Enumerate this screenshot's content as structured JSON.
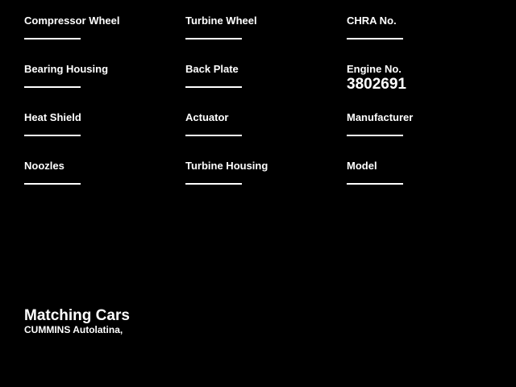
{
  "window": {
    "bg_color": "#000000",
    "text_color": "#ffffff"
  },
  "fields": {
    "col1": [
      {
        "label": "Compressor Wheel",
        "value": ""
      },
      {
        "label": "Bearing Housing",
        "value": ""
      },
      {
        "label": "Heat Shield",
        "value": ""
      },
      {
        "label": "Noozles",
        "value": ""
      }
    ],
    "col2": [
      {
        "label": "Turbine Wheel",
        "value": ""
      },
      {
        "label": "Back Plate",
        "value": ""
      },
      {
        "label": "Actuator",
        "value": ""
      },
      {
        "label": "Turbine Housing",
        "value": ""
      }
    ],
    "col3": [
      {
        "label": "CHRA No.",
        "value": ""
      },
      {
        "label": "Engine No.",
        "value": "3802691"
      },
      {
        "label": "Manufacturer",
        "value": ""
      },
      {
        "label": "Model",
        "value": ""
      }
    ]
  },
  "footer": {
    "heading": "Matching Cars",
    "text": "CUMMINS Autolatina,"
  }
}
